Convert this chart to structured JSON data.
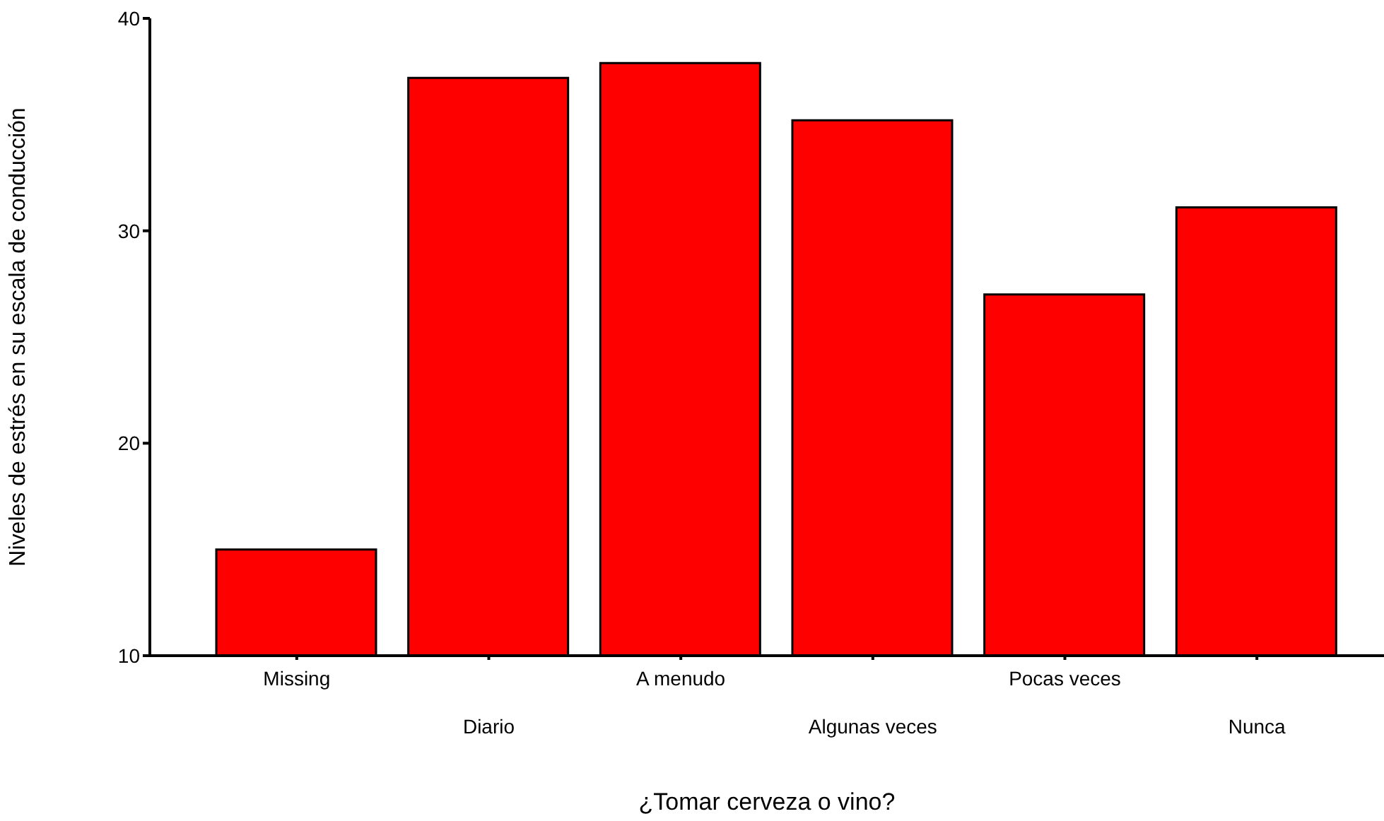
{
  "chart_data": {
    "type": "bar",
    "xlabel": "¿Tomar cerveza o vino?",
    "ylabel": "Niveles de estrés en su escala de conducción",
    "categories": [
      "Missing",
      "Diario",
      "A menudo",
      "Algunas veces",
      "Pocas veces",
      "Nunca"
    ],
    "values": [
      15.0,
      37.2,
      37.9,
      35.2,
      27.0,
      31.1
    ],
    "color": "#ff0000",
    "ylim": [
      10,
      40
    ],
    "yticks": [
      10,
      20,
      30,
      40
    ],
    "grid": false,
    "legend": false
  }
}
